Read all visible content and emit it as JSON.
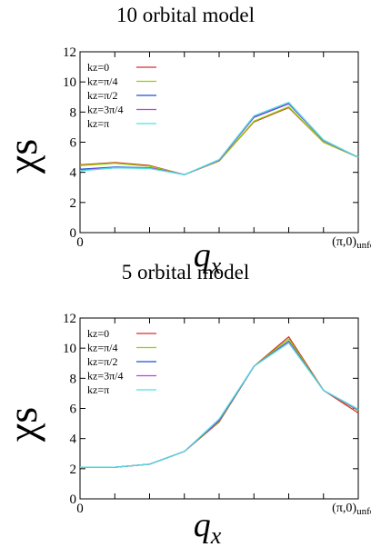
{
  "chart_data": [
    {
      "type": "line",
      "title": "10 orbital model",
      "ylabel": "χs",
      "xlabel": "qx",
      "xlabel_main": "q",
      "xlabel_sub": "x",
      "x_tick_start": "0",
      "x_tick_end": "(π,0)unfold",
      "x_tick_end_main": "(π,0)",
      "x_tick_end_sub": "unfold",
      "ylim": [
        0,
        12
      ],
      "y_ticks": [
        "0",
        "2",
        "4",
        "6",
        "8",
        "10",
        "12"
      ],
      "x": [
        0,
        1,
        2,
        3,
        4,
        5,
        6,
        7,
        8
      ],
      "legend_position": "top-left",
      "series": [
        {
          "name": "kz=0",
          "color": "#d62d2d",
          "values": [
            4.5,
            4.65,
            4.45,
            3.85,
            4.75,
            7.35,
            8.3,
            6.0,
            5.0
          ]
        },
        {
          "name": "kz=π/4",
          "color": "#8fd400",
          "values": [
            4.45,
            4.6,
            4.4,
            3.85,
            4.75,
            7.4,
            8.35,
            6.0,
            5.0
          ]
        },
        {
          "name": "kz=π/2",
          "color": "#1f4fd6",
          "values": [
            4.2,
            4.35,
            4.3,
            3.85,
            4.8,
            7.65,
            8.55,
            6.1,
            5.0
          ]
        },
        {
          "name": "kz=3π/4",
          "color": "#c040e0",
          "values": [
            4.15,
            4.3,
            4.3,
            3.85,
            4.8,
            7.7,
            8.6,
            6.1,
            5.0
          ]
        },
        {
          "name": "kz=π",
          "color": "#50e0e0",
          "values": [
            4.1,
            4.3,
            4.25,
            3.85,
            4.85,
            7.75,
            8.65,
            6.15,
            5.0
          ]
        }
      ]
    },
    {
      "type": "line",
      "title": "5 orbital model",
      "ylabel": "χs",
      "xlabel": "qx",
      "xlabel_main": "q",
      "xlabel_sub": "x",
      "x_tick_start": "0",
      "x_tick_end": "(π,0)unfold",
      "x_tick_end_main": "(π,0)",
      "x_tick_end_sub": "unfold",
      "ylim": [
        0,
        12
      ],
      "y_ticks": [
        "0",
        "2",
        "4",
        "6",
        "8",
        "10",
        "12"
      ],
      "x": [
        0,
        1,
        2,
        3,
        4,
        5,
        6,
        7,
        8
      ],
      "legend_position": "top-left",
      "series": [
        {
          "name": "kz=0",
          "color": "#d62d2d",
          "values": [
            2.1,
            2.1,
            2.3,
            3.15,
            5.1,
            8.8,
            10.75,
            7.2,
            5.7
          ]
        },
        {
          "name": "kz=π/4",
          "color": "#8fd400",
          "values": [
            2.1,
            2.1,
            2.3,
            3.15,
            5.15,
            8.8,
            10.6,
            7.2,
            5.85
          ]
        },
        {
          "name": "kz=π/2",
          "color": "#1f4fd6",
          "values": [
            2.1,
            2.1,
            2.3,
            3.15,
            5.2,
            8.8,
            10.45,
            7.2,
            5.9
          ]
        },
        {
          "name": "kz=3π/4",
          "color": "#c040e0",
          "values": [
            2.1,
            2.1,
            2.3,
            3.15,
            5.25,
            8.8,
            10.4,
            7.2,
            5.9
          ]
        },
        {
          "name": "kz=π",
          "color": "#50e0e0",
          "values": [
            2.1,
            2.1,
            2.3,
            3.15,
            5.3,
            8.8,
            10.35,
            7.2,
            5.95
          ]
        }
      ]
    }
  ]
}
